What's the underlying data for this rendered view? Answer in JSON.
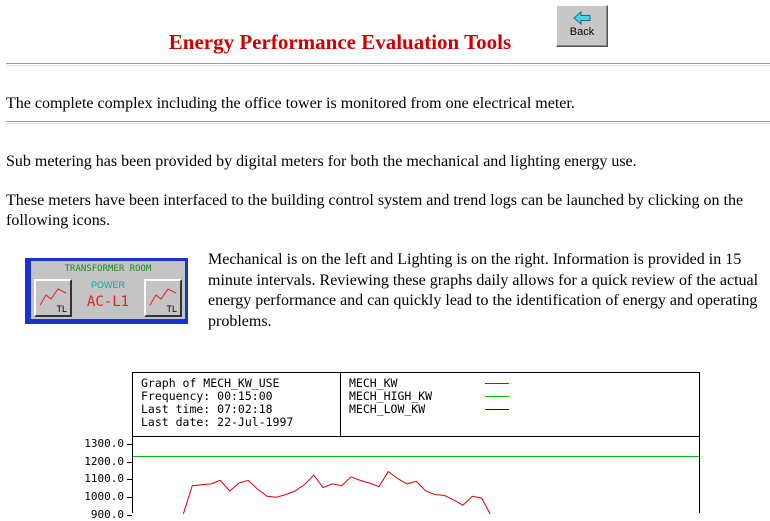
{
  "header": {
    "title": "Energy Performance Evaluation Tools",
    "back_label": "Back"
  },
  "paragraphs": {
    "p1": "The complete complex including the office tower is monitored from one electrical meter.",
    "p2": "Sub metering has been provided by digital meters for both the mechanical and lighting energy use.",
    "p3": "These meters have been interfaced to the building control system and trend logs can be launched by clicking on the following icons.",
    "description": "Mechanical is on the left and Lighting is on the right.  Information is provided in 15 minute intervals.  Reviewing these graphs daily allows for a quick review of the actual energy performance and can quickly lead to the identification of energy and operating problems."
  },
  "icon_panel": {
    "transformer_label": "TRANSFORMER ROOM",
    "power_label": "POWER",
    "meter_label": "AC-L1",
    "left_button_label": "TL",
    "right_button_label": "TL"
  },
  "graph": {
    "info_lines": [
      "Graph of MECH_KW_USE",
      "Frequency: 00:15:00",
      "Last time: 07:02:18",
      "Last date: 22-Jul-1997"
    ],
    "legend": [
      {
        "name": "MECH_KW",
        "color": "#e00000"
      },
      {
        "name": "MECH_HIGH_KW",
        "color": "#00c000"
      },
      {
        "name": "MECH_LOW_KW",
        "color": "#0000d0"
      }
    ]
  },
  "chart_data": {
    "type": "line",
    "y_ticks": [
      "1300.0",
      "1200.0",
      "1100.0",
      "1000.0",
      "900.0"
    ],
    "ylim": [
      900,
      1300
    ],
    "series": [
      {
        "name": "MECH_HIGH_KW",
        "color": "#00c000",
        "values": [
          1235,
          1235
        ]
      },
      {
        "name": "MECH_KW",
        "color": "#e00000",
        "values": [
          905,
          1070,
          1075,
          1080,
          1100,
          1040,
          1085,
          1100,
          1050,
          1010,
          1005,
          1020,
          1040,
          1075,
          1130,
          1060,
          1080,
          1070,
          1120,
          1100,
          1085,
          1065,
          1150,
          1110,
          1080,
          1095,
          1040,
          1020,
          1015,
          990,
          960,
          1010,
          1000,
          900
        ]
      }
    ]
  }
}
